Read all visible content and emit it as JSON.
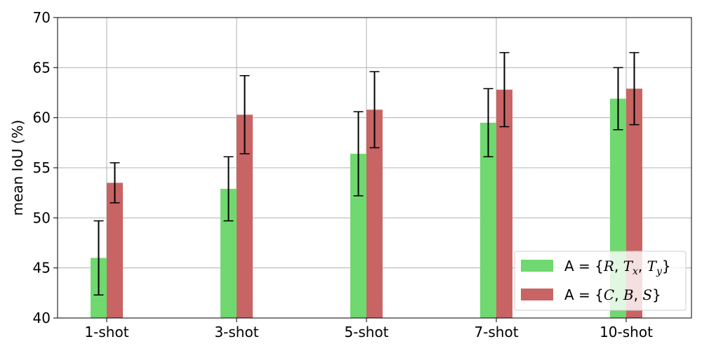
{
  "chart_data": {
    "type": "bar",
    "categories": [
      "1-shot",
      "3-shot",
      "5-shot",
      "7-shot",
      "10-shot"
    ],
    "ylabel": "mean IoU (%)",
    "xlabel": "",
    "ylim": [
      40,
      70
    ],
    "yticks": [
      40,
      45,
      50,
      55,
      60,
      65,
      70
    ],
    "grid": true,
    "legend_position": "lower-right",
    "series": [
      {
        "name": "A = {R, Tx, Ty}",
        "color": "#6fd86f",
        "values": [
          46.0,
          52.9,
          56.4,
          59.5,
          61.9
        ],
        "error_low": [
          42.3,
          49.7,
          52.2,
          56.1,
          58.8
        ],
        "error_high": [
          49.7,
          56.1,
          60.6,
          62.9,
          65.0
        ]
      },
      {
        "name": "A = {C, B, S}",
        "color": "#c86464",
        "values": [
          53.5,
          60.3,
          60.8,
          62.8,
          62.9
        ],
        "error_low": [
          51.5,
          56.4,
          57.0,
          59.1,
          59.3
        ],
        "error_high": [
          55.5,
          64.2,
          64.6,
          66.5,
          66.5
        ]
      }
    ]
  }
}
